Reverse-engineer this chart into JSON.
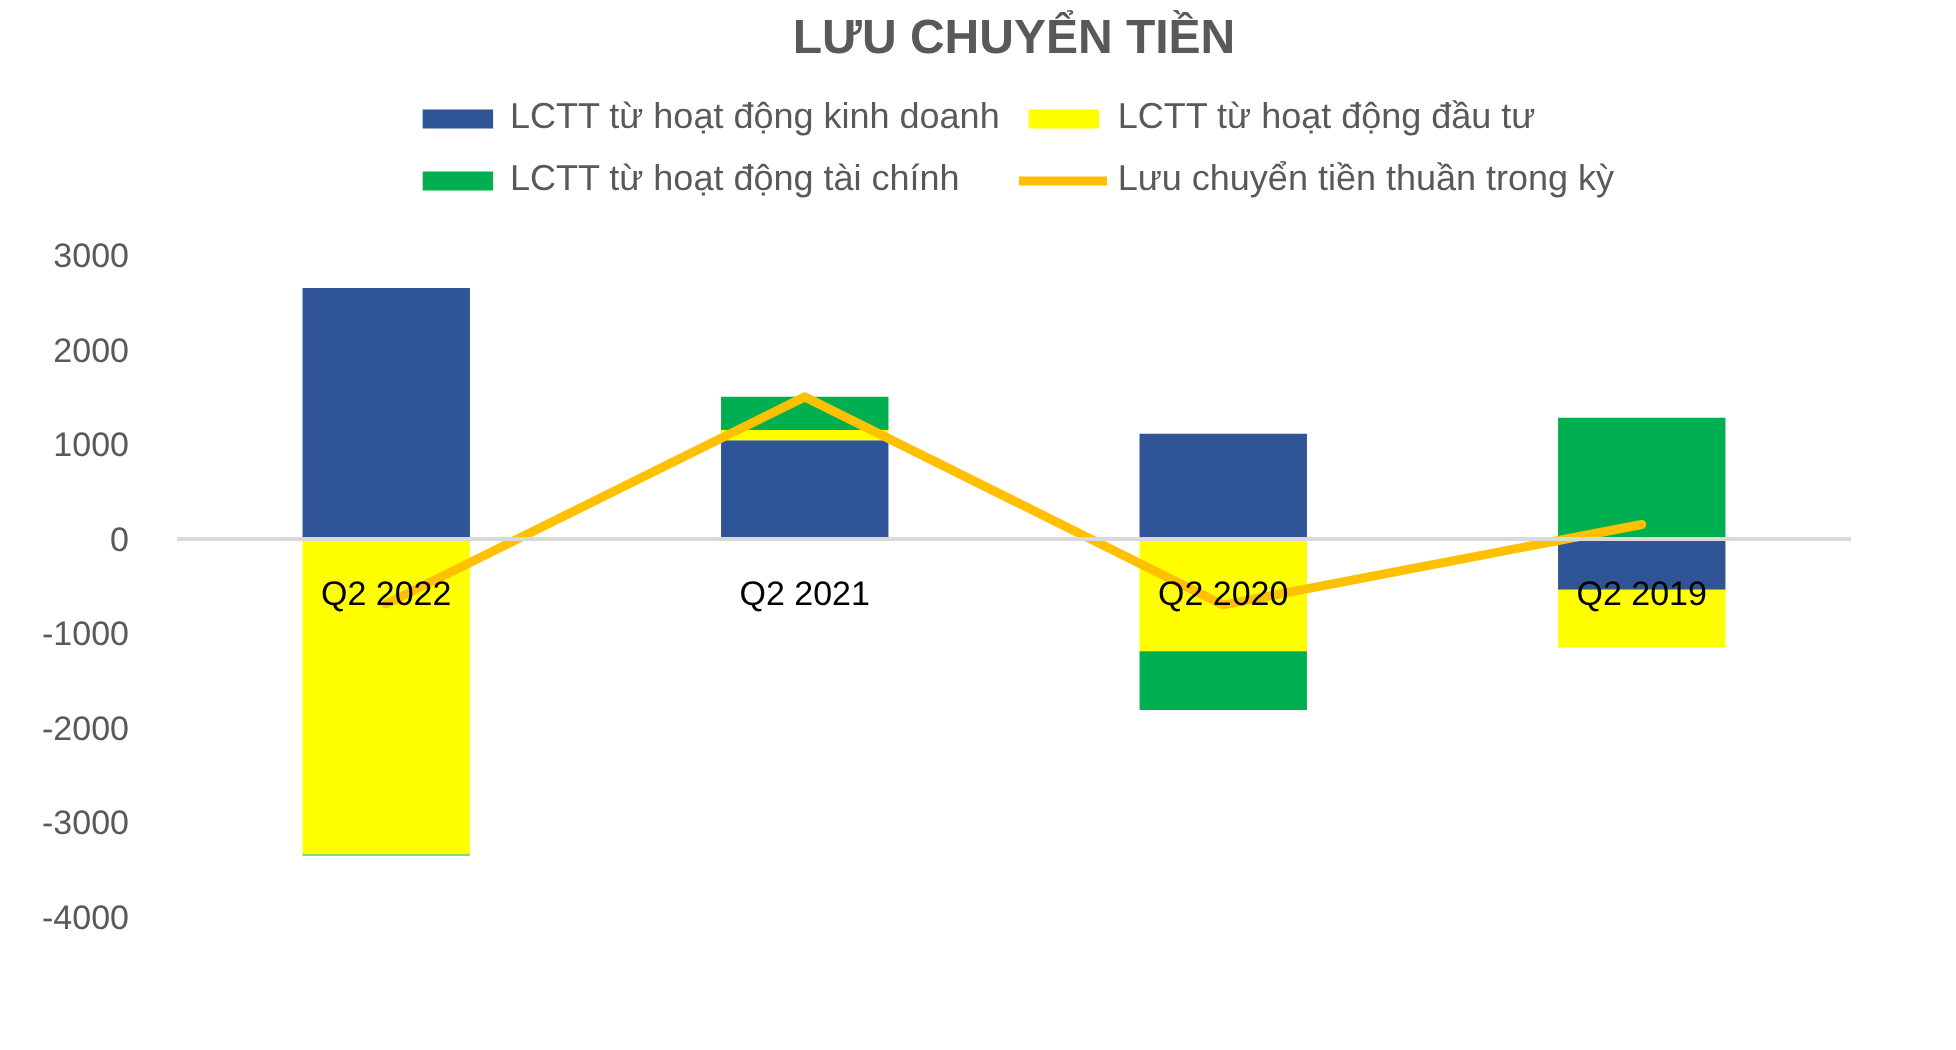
{
  "chart_data": {
    "type": "bar",
    "title": "LƯU CHUYỂN TIỀN",
    "categories": [
      "Q2 2022",
      "Q2 2021",
      "Q2 2020",
      "Q2 2019"
    ],
    "stacked": true,
    "series": [
      {
        "name": "LCTT từ hoạt động kinh doanh",
        "color": "#2f5597",
        "values": [
          2650,
          1040,
          1110,
          -540
        ]
      },
      {
        "name": "LCTT từ hoạt động đầu tư",
        "color": "#ffff00",
        "values": [
          -3340,
          110,
          -1190,
          -610
        ]
      },
      {
        "name": "LCTT từ hoạt động tài chính",
        "color": "#00b050",
        "values": [
          -10,
          350,
          -620,
          1280
        ]
      },
      {
        "name": "Lưu chuyển tiền thuần trong kỳ",
        "type": "line",
        "color": "#ffc000",
        "values": [
          -690,
          1500,
          -700,
          150
        ]
      }
    ],
    "ylim": [
      -4000,
      3000
    ],
    "yticks": [
      -4000,
      -3000,
      -2000,
      -1000,
      0,
      1000,
      2000,
      3000
    ],
    "grid": false,
    "legend": "top"
  }
}
